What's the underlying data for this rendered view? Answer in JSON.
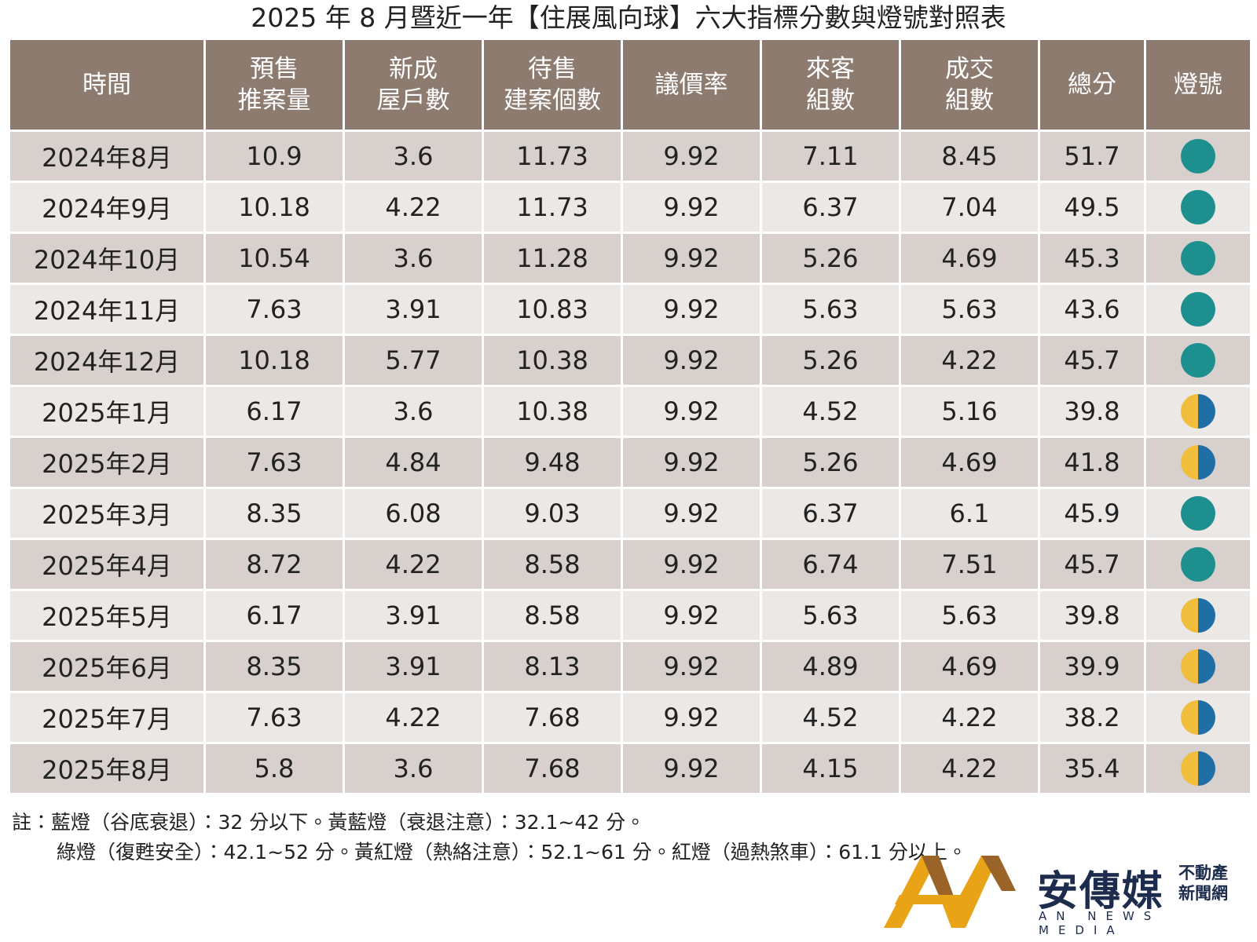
{
  "header": {
    "title": "2025 年 8 月暨近一年【住展風向球】六大指標分數與燈號對照表"
  },
  "table": {
    "columns": [
      [
        "時間"
      ],
      [
        "預售",
        "推案量"
      ],
      [
        "新成",
        "屋戶數"
      ],
      [
        "待售",
        "建案個數"
      ],
      [
        "議價率"
      ],
      [
        "來客",
        "組數"
      ],
      [
        "成交",
        "組數"
      ],
      [
        "總分"
      ],
      [
        "燈號"
      ]
    ],
    "rows": [
      {
        "cells": [
          "2024年8月",
          "10.9",
          "3.6",
          "11.73",
          "9.92",
          "7.11",
          "8.45",
          "51.7"
        ],
        "light": "green"
      },
      {
        "cells": [
          "2024年9月",
          "10.18",
          "4.22",
          "11.73",
          "9.92",
          "6.37",
          "7.04",
          "49.5"
        ],
        "light": "green"
      },
      {
        "cells": [
          "2024年10月",
          "10.54",
          "3.6",
          "11.28",
          "9.92",
          "5.26",
          "4.69",
          "45.3"
        ],
        "light": "green"
      },
      {
        "cells": [
          "2024年11月",
          "7.63",
          "3.91",
          "10.83",
          "9.92",
          "5.63",
          "5.63",
          "43.6"
        ],
        "light": "green"
      },
      {
        "cells": [
          "2024年12月",
          "10.18",
          "5.77",
          "10.38",
          "9.92",
          "5.26",
          "4.22",
          "45.7"
        ],
        "light": "green"
      },
      {
        "cells": [
          "2025年1月",
          "6.17",
          "3.6",
          "10.38",
          "9.92",
          "4.52",
          "5.16",
          "39.8"
        ],
        "light": "yellow-blue"
      },
      {
        "cells": [
          "2025年2月",
          "7.63",
          "4.84",
          "9.48",
          "9.92",
          "5.26",
          "4.69",
          "41.8"
        ],
        "light": "yellow-blue"
      },
      {
        "cells": [
          "2025年3月",
          "8.35",
          "6.08",
          "9.03",
          "9.92",
          "6.37",
          "6.1",
          "45.9"
        ],
        "light": "green"
      },
      {
        "cells": [
          "2025年4月",
          "8.72",
          "4.22",
          "8.58",
          "9.92",
          "6.74",
          "7.51",
          "45.7"
        ],
        "light": "green"
      },
      {
        "cells": [
          "2025年5月",
          "6.17",
          "3.91",
          "8.58",
          "9.92",
          "5.63",
          "5.63",
          "39.8"
        ],
        "light": "yellow-blue"
      },
      {
        "cells": [
          "2025年6月",
          "8.35",
          "3.91",
          "8.13",
          "9.92",
          "4.89",
          "4.69",
          "39.9"
        ],
        "light": "yellow-blue"
      },
      {
        "cells": [
          "2025年7月",
          "7.63",
          "4.22",
          "7.68",
          "9.92",
          "4.52",
          "4.22",
          "38.2"
        ],
        "light": "yellow-blue"
      },
      {
        "cells": [
          "2025年8月",
          "5.8",
          "3.6",
          "7.68",
          "9.92",
          "4.15",
          "4.22",
          "35.4"
        ],
        "light": "yellow-blue"
      }
    ]
  },
  "footnote": [
    "註：藍燈（谷底衰退）：32 分以下。黃藍燈（衰退注意）：32.1~42 分。",
    "綠燈（復甦安全）：42.1~52 分。黃紅燈（熱絡注意）：52.1~61 分。紅燈（過熱煞車）：61.1 分以上。"
  ],
  "logo": {
    "name": "安傳媒",
    "tag": [
      "不動產",
      "新聞網"
    ],
    "english": "AN NEWS MEDIA"
  }
}
